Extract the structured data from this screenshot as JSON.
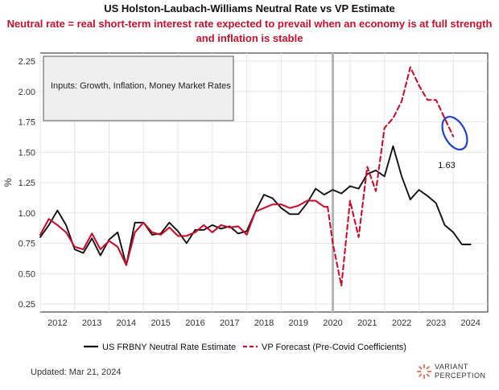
{
  "chart_data": {
    "type": "line",
    "title": "US Holston-Laubach-Williams Neutral Rate vs VP Estimate",
    "subtitle_lines": [
      "Neutral rate = real short-term interest rate expected to prevail when an economy is at full strength",
      "and inflation is stable"
    ],
    "ylabel": "%",
    "ylim": [
      0.25,
      2.25
    ],
    "yticks": [
      "0.25",
      "0.50",
      "0.75",
      "1.00",
      "1.25",
      "1.50",
      "1.75",
      "2.00",
      "2.25"
    ],
    "xlim": [
      2011.5,
      2024.5
    ],
    "xticks": [
      "2012",
      "2013",
      "2014",
      "2015",
      "2016",
      "2017",
      "2018",
      "2019",
      "2020",
      "2021",
      "2022",
      "2023",
      "2024"
    ],
    "grid": true,
    "annotation_box": "Inputs: Growth, Inflation, Money Market Rates",
    "vertical_marker_x": 2020.0,
    "highlight_label": "1.63",
    "highlight_point": [
      2023.4,
      1.63
    ],
    "legend": {
      "placement": "bottom",
      "items": [
        {
          "label": "US FRBNY Neutral Rate Estimate",
          "style": "solid",
          "color": "#111111"
        },
        {
          "label": "VP Forecast (Pre-Covid Coefficients)",
          "style": "dashed",
          "color": "#c8102e"
        }
      ]
    },
    "series": [
      {
        "name": "US FRBNY Neutral Rate Estimate",
        "color": "#111111",
        "x": [
          2011.5,
          2011.75,
          2012.0,
          2012.25,
          2012.5,
          2012.75,
          2013.0,
          2013.25,
          2013.5,
          2013.75,
          2014.0,
          2014.25,
          2014.5,
          2014.75,
          2015.0,
          2015.25,
          2015.5,
          2015.75,
          2016.0,
          2016.25,
          2016.5,
          2016.75,
          2017.0,
          2017.25,
          2017.5,
          2017.75,
          2018.0,
          2018.25,
          2018.5,
          2018.75,
          2019.0,
          2019.25,
          2019.5,
          2019.75,
          2020.0,
          2020.25,
          2020.5,
          2020.75,
          2021.0,
          2021.25,
          2021.5,
          2021.75,
          2022.0,
          2022.25,
          2022.5,
          2022.75,
          2023.0,
          2023.25,
          2023.5,
          2023.75,
          2024.0
        ],
        "values": [
          0.8,
          0.9,
          1.02,
          0.9,
          0.7,
          0.67,
          0.79,
          0.65,
          0.78,
          0.84,
          0.57,
          0.92,
          0.92,
          0.82,
          0.83,
          0.92,
          0.85,
          0.75,
          0.86,
          0.86,
          0.9,
          0.87,
          0.89,
          0.83,
          0.85,
          1.01,
          1.15,
          1.12,
          1.04,
          0.99,
          0.99,
          1.08,
          1.2,
          1.15,
          1.19,
          1.16,
          1.22,
          1.2,
          1.32,
          1.35,
          1.3,
          1.55,
          1.3,
          1.11,
          1.19,
          1.14,
          1.08,
          0.9,
          0.84,
          0.74,
          0.74
        ]
      },
      {
        "name": "VP Forecast (Pre-Covid Coefficients)",
        "color": "#c8102e",
        "x": [
          2011.5,
          2011.75,
          2012.0,
          2012.25,
          2012.5,
          2012.75,
          2013.0,
          2013.25,
          2013.5,
          2013.75,
          2014.0,
          2014.25,
          2014.5,
          2014.75,
          2015.0,
          2015.25,
          2015.5,
          2015.75,
          2016.0,
          2016.25,
          2016.5,
          2016.75,
          2017.0,
          2017.25,
          2017.5,
          2017.75,
          2018.0,
          2018.25,
          2018.5,
          2018.75,
          2019.0,
          2019.25,
          2019.5,
          2019.75,
          2019.85
        ],
        "values": [
          0.82,
          0.95,
          0.9,
          0.84,
          0.72,
          0.7,
          0.83,
          0.7,
          0.77,
          0.72,
          0.57,
          0.84,
          0.92,
          0.84,
          0.82,
          0.88,
          0.81,
          0.81,
          0.84,
          0.9,
          0.84,
          0.9,
          0.88,
          0.89,
          0.82,
          1.01,
          1.04,
          1.07,
          1.07,
          1.04,
          1.06,
          1.1,
          1.1,
          1.05,
          1.05
        ]
      },
      {
        "name": "VP Forecast (Pre-Covid Coefficients)",
        "color": "#c8102e",
        "x": [
          2019.85,
          2020.0,
          2020.25,
          2020.5,
          2020.75,
          2021.0,
          2021.25,
          2021.5,
          2021.75,
          2022.0,
          2022.25,
          2022.5,
          2022.75,
          2023.0,
          2023.25,
          2023.5
        ],
        "values": [
          1.05,
          0.75,
          0.4,
          1.1,
          0.8,
          1.38,
          1.18,
          1.7,
          1.78,
          1.92,
          2.2,
          2.05,
          1.93,
          1.93,
          1.78,
          1.63
        ]
      }
    ]
  },
  "footer": {
    "updated": "Updated: Mar 21, 2024",
    "brand_line1": "VARIANT",
    "brand_line2": "PERCEPTION"
  },
  "colors": {
    "accent": "#c8102e",
    "primary_line": "#111111",
    "highlight": "#1f3fcc",
    "grid": "#e6e6e6",
    "marker": "#b5b5b5"
  }
}
